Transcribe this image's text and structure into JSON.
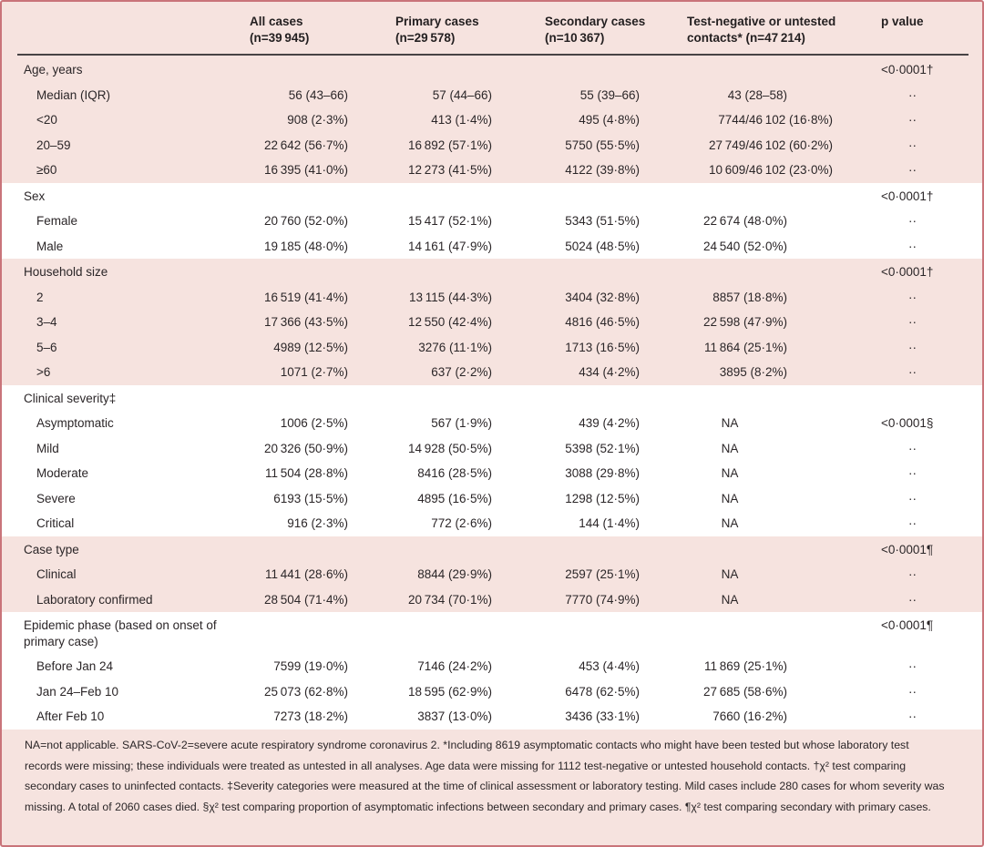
{
  "table": {
    "columns": [
      {
        "line1": "",
        "line2": ""
      },
      {
        "line1": "All cases",
        "line2": "(n=39 945)"
      },
      {
        "line1": "Primary cases",
        "line2": "(n=29 578)"
      },
      {
        "line1": "Secondary cases",
        "line2": "(n=10 367)"
      },
      {
        "line1": "Test-negative or untested",
        "line2": "contacts* (n=47 214)"
      },
      {
        "line1": "p value",
        "line2": ""
      }
    ],
    "missing_marker": "··",
    "sections": [
      {
        "tone": "pink",
        "rows": [
          {
            "kind": "section",
            "label": "Age, years",
            "values": [
              "",
              "",
              "",
              ""
            ],
            "p": "<0·0001†"
          },
          {
            "kind": "sub",
            "label": "Median (IQR)",
            "values": [
              "56 (43–66)",
              "57 (44–66)",
              "55 (39–66)",
              "43 (28–58)"
            ],
            "p": "··"
          },
          {
            "kind": "sub",
            "label": "<20",
            "values": [
              "908 (2·3%)",
              "413 (1·4%)",
              "495 (4·8%)",
              "7744/46 102 (16·8%)"
            ],
            "p": "··"
          },
          {
            "kind": "sub",
            "label": "20–59",
            "values": [
              "22 642 (56·7%)",
              "16 892 (57·1%)",
              "5750 (55·5%)",
              "27 749/46 102 (60·2%)"
            ],
            "p": "··"
          },
          {
            "kind": "sub",
            "label": "≥60",
            "values": [
              "16 395 (41·0%)",
              "12 273 (41·5%)",
              "4122 (39·8%)",
              "10 609/46 102 (23·0%)"
            ],
            "p": "··"
          }
        ]
      },
      {
        "tone": "white",
        "rows": [
          {
            "kind": "section",
            "label": "Sex",
            "values": [
              "",
              "",
              "",
              ""
            ],
            "p": "<0·0001†"
          },
          {
            "kind": "sub",
            "label": "Female",
            "values": [
              "20 760 (52·0%)",
              "15 417 (52·1%)",
              "5343 (51·5%)",
              "22 674 (48·0%)"
            ],
            "p": "··"
          },
          {
            "kind": "sub",
            "label": "Male",
            "values": [
              "19 185 (48·0%)",
              "14 161 (47·9%)",
              "5024 (48·5%)",
              "24 540 (52·0%)"
            ],
            "p": "··"
          }
        ]
      },
      {
        "tone": "pink",
        "rows": [
          {
            "kind": "section",
            "label": "Household size",
            "values": [
              "",
              "",
              "",
              ""
            ],
            "p": "<0·0001†"
          },
          {
            "kind": "sub",
            "label": "2",
            "values": [
              "16 519 (41·4%)",
              "13 115 (44·3%)",
              "3404 (32·8%)",
              "8857 (18·8%)"
            ],
            "p": "··"
          },
          {
            "kind": "sub",
            "label": "3–4",
            "values": [
              "17 366 (43·5%)",
              "12 550 (42·4%)",
              "4816 (46·5%)",
              "22 598 (47·9%)"
            ],
            "p": "··"
          },
          {
            "kind": "sub",
            "label": "5–6",
            "values": [
              "4989 (12·5%)",
              "3276 (11·1%)",
              "1713 (16·5%)",
              "11 864 (25·1%)"
            ],
            "p": "··"
          },
          {
            "kind": "sub",
            "label": ">6",
            "values": [
              "1071 (2·7%)",
              "637 (2·2%)",
              "434 (4·2%)",
              "3895 (8·2%)"
            ],
            "p": "··"
          }
        ]
      },
      {
        "tone": "white",
        "rows": [
          {
            "kind": "section",
            "label": "Clinical severity‡",
            "values": [
              "",
              "",
              "",
              ""
            ],
            "p": ""
          },
          {
            "kind": "sub",
            "label": "Asymptomatic",
            "values": [
              "1006 (2·5%)",
              "567 (1·9%)",
              "439 (4·2%)",
              "NA"
            ],
            "p": "<0·0001§"
          },
          {
            "kind": "sub",
            "label": "Mild",
            "values": [
              "20 326 (50·9%)",
              "14 928 (50·5%)",
              "5398 (52·1%)",
              "NA"
            ],
            "p": "··"
          },
          {
            "kind": "sub",
            "label": "Moderate",
            "values": [
              "11 504 (28·8%)",
              "8416 (28·5%)",
              "3088 (29·8%)",
              "NA"
            ],
            "p": "··"
          },
          {
            "kind": "sub",
            "label": "Severe",
            "values": [
              "6193 (15·5%)",
              "4895 (16·5%)",
              "1298 (12·5%)",
              "NA"
            ],
            "p": "··"
          },
          {
            "kind": "sub",
            "label": "Critical",
            "values": [
              "916 (2·3%)",
              "772 (2·6%)",
              "144 (1·4%)",
              "NA"
            ],
            "p": "··"
          }
        ]
      },
      {
        "tone": "pink",
        "rows": [
          {
            "kind": "section",
            "label": "Case type",
            "values": [
              "",
              "",
              "",
              ""
            ],
            "p": "<0·0001¶"
          },
          {
            "kind": "sub",
            "label": "Clinical",
            "values": [
              "11 441 (28·6%)",
              "8844 (29·9%)",
              "2597 (25·1%)",
              "NA"
            ],
            "p": "··"
          },
          {
            "kind": "sub",
            "label": "Laboratory confirmed",
            "values": [
              "28 504 (71·4%)",
              "20 734 (70·1%)",
              "7770 (74·9%)",
              "NA"
            ],
            "p": "··"
          }
        ]
      },
      {
        "tone": "white",
        "rows": [
          {
            "kind": "section",
            "label": "Epidemic phase (based on onset of primary case)",
            "values": [
              "",
              "",
              "",
              ""
            ],
            "p": "<0·0001¶"
          },
          {
            "kind": "sub",
            "label": "Before Jan 24",
            "values": [
              "7599 (19·0%)",
              "7146 (24·2%)",
              "453 (4·4%)",
              "11 869 (25·1%)"
            ],
            "p": "··"
          },
          {
            "kind": "sub",
            "label": "Jan 24–Feb 10",
            "values": [
              "25 073 (62·8%)",
              "18 595 (62·9%)",
              "6478 (62·5%)",
              "27 685 (58·6%)"
            ],
            "p": "··"
          },
          {
            "kind": "sub",
            "label": "After Feb 10",
            "values": [
              "7273 (18·2%)",
              "3837 (13·0%)",
              "3436 (33·1%)",
              "7660 (16·2%)"
            ],
            "p": "··"
          }
        ]
      }
    ]
  },
  "footnote": "NA=not applicable. SARS-CoV-2=severe acute respiratory syndrome coronavirus 2. *Including 8619 asymptomatic contacts who might have been tested but whose laboratory test records were missing; these individuals were treated as untested in all analyses. Age data were missing for 1112 test-negative or untested household contacts. †χ² test comparing secondary cases to uninfected contacts. ‡Severity categories were measured at the time of clinical assessment or laboratory testing. Mild cases include 280 cases for whom severity was missing. A total of 2060 cases died. §χ² test comparing proportion of asymptomatic infections between secondary and primary cases. ¶χ² test comparing secondary with primary cases.",
  "colors": {
    "band_pink": "#f6e3df",
    "band_white": "#ffffff",
    "outer_border": "#c9747a",
    "header_rule": "#474345",
    "text": "#2b2628"
  }
}
